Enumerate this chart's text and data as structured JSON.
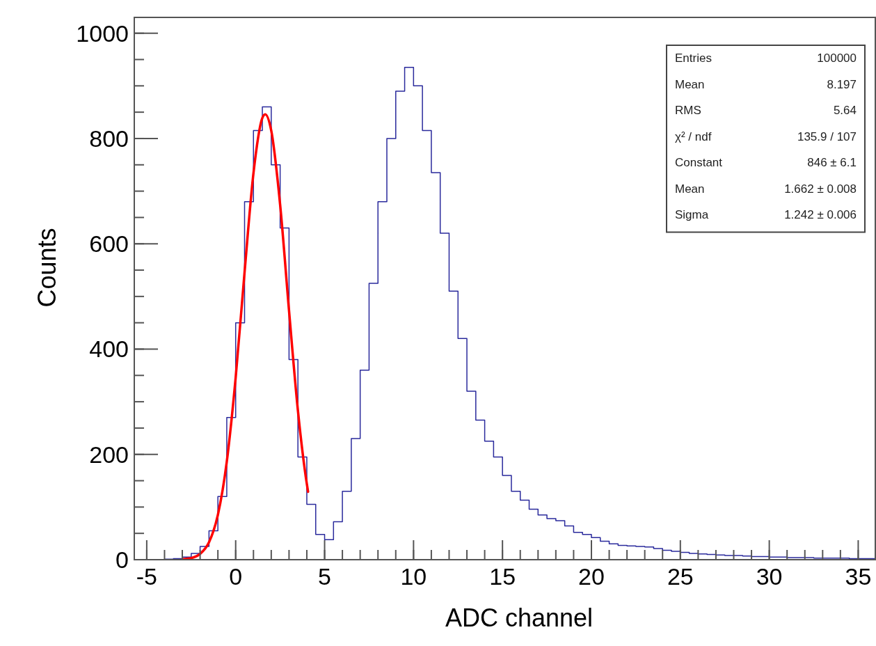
{
  "chart_data": {
    "type": "histogram",
    "xlabel": "ADC channel",
    "ylabel": "Counts",
    "bins": [
      -5.5,
      -5,
      -4.5,
      -4,
      -3.5,
      -3,
      -2.5,
      -2,
      -1.5,
      -1,
      -0.5,
      0,
      0.5,
      1,
      1.5,
      2,
      2.5,
      3,
      3.5,
      4,
      4.5,
      5,
      5.5,
      6,
      6.5,
      7,
      7.5,
      8,
      8.5,
      9,
      9.5,
      10,
      10.5,
      11,
      11.5,
      12,
      12.5,
      13,
      13.5,
      14,
      14.5,
      15,
      15.5,
      16,
      16.5,
      17,
      17.5,
      18,
      18.5,
      19,
      19.5,
      20,
      20.5,
      21,
      21.5,
      22,
      22.5,
      23,
      23.5,
      24,
      24.5,
      25,
      25.5,
      26,
      26.5,
      27,
      27.5,
      28,
      28.5,
      29,
      29.5,
      30,
      30.5,
      31,
      31.5,
      32,
      32.5,
      33,
      33.5,
      34,
      34.5,
      35,
      35.5,
      36
    ],
    "values": [
      0,
      0,
      0,
      1,
      2,
      5,
      12,
      25,
      55,
      120,
      270,
      450,
      680,
      815,
      860,
      750,
      630,
      380,
      195,
      105,
      48,
      38,
      72,
      130,
      230,
      360,
      525,
      680,
      800,
      890,
      935,
      900,
      815,
      735,
      620,
      510,
      420,
      320,
      265,
      225,
      195,
      160,
      130,
      113,
      96,
      85,
      78,
      74,
      64,
      52,
      48,
      42,
      35,
      30,
      27,
      26,
      25,
      24,
      21,
      18,
      16,
      14,
      12,
      11,
      10,
      9,
      8,
      8,
      7,
      6,
      6,
      5,
      5,
      4,
      4,
      4,
      3,
      3,
      3,
      3,
      2,
      2,
      2
    ],
    "color": "#2a2a9c",
    "series": [
      {
        "type": "line",
        "color": "#ff0000",
        "x": [
          -3,
          -2.5,
          -2,
          -1.5,
          -1,
          -0.5,
          0,
          0.5,
          1,
          1.5,
          1.662,
          2,
          2.5,
          3,
          3.5,
          4,
          4.07
        ],
        "values": [
          1,
          3,
          11,
          33,
          85,
          186,
          346,
          546,
          734,
          839,
          846,
          815,
          674,
          473,
          283,
          144,
          129
        ]
      }
    ],
    "xlim": [
      -5.7,
      36
    ],
    "xticks": [
      -5,
      0,
      5,
      10,
      15,
      20,
      25,
      30,
      35
    ],
    "ylim": [
      0,
      1030
    ],
    "yticks": [
      0,
      200,
      400,
      600,
      800,
      1000
    ],
    "grid": false,
    "annotations": [
      "Entries",
      "100000",
      "Mean",
      "8.197",
      "RMS",
      "5.64",
      "χ² / ndf",
      "135.9 / 107",
      "Constant",
      "846 ± 6.1",
      "Mean",
      "1.662 ± 0.008",
      "Sigma",
      "1.242 ± 0.006"
    ]
  }
}
